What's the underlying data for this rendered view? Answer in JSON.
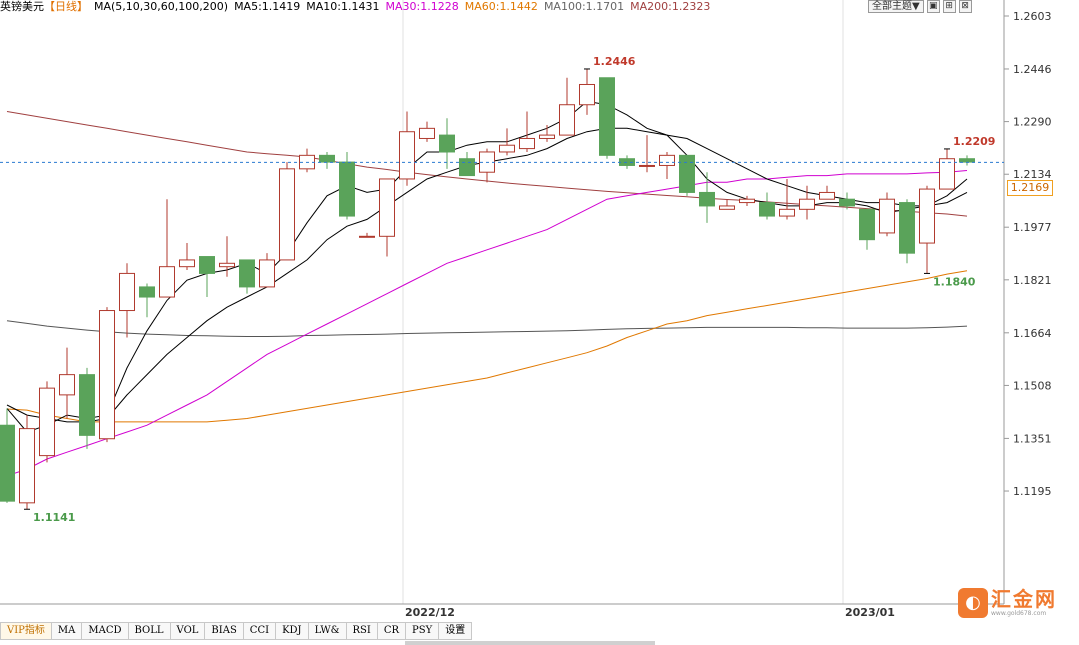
{
  "header": {
    "title": "英镑美元",
    "period": "【日线】",
    "ma_params": "MA(5,10,30,60,100,200)",
    "ma5": "MA5:1.1419",
    "ma10": "MA10:1.1431",
    "ma30": "MA30:1.1228",
    "ma60": "MA60:1.1442",
    "ma100": "MA100:1.1701",
    "ma200": "MA200:1.2323"
  },
  "controls": {
    "theme_label": "全部主题▼",
    "buttons": [
      "▣",
      "⊞",
      "⊠"
    ]
  },
  "price_tag": "1.2169",
  "logo": {
    "icon": "◐",
    "name": "汇金网",
    "url": "www.gold678.com"
  },
  "bottom_tabs": [
    "VIP指标",
    "MA",
    "MACD",
    "BOLL",
    "VOL",
    "BIAS",
    "CCI",
    "KDJ",
    "LW&",
    "RSI",
    "CR",
    "PSY",
    "设置"
  ],
  "colors": {
    "up": "#b03a2e",
    "down": "#5aa35a",
    "ma5": "#000000",
    "ma10": "#000000",
    "ma30": "#d000d0",
    "ma60": "#e07800",
    "ma100": "#555555",
    "ma200": "#a04040",
    "current": "#2a7ad0"
  },
  "chart_data": {
    "type": "candlestick",
    "y_ticks": [
      "1.2603",
      "1.2446",
      "1.2290",
      "1.2134",
      "1.1977",
      "1.1821",
      "1.1664",
      "1.1508",
      "1.1351",
      "1.1195"
    ],
    "ylim": [
      1.1038,
      1.2603
    ],
    "x_labels": [
      {
        "label": "2022/12",
        "index": 20
      },
      {
        "label": "2023/01",
        "index": 42
      }
    ],
    "current_price": 1.2169,
    "annotations": [
      {
        "text": "1.2446",
        "index": 29,
        "value": 1.2446,
        "type": "high"
      },
      {
        "text": "1.1141",
        "index": 1,
        "value": 1.1141,
        "type": "low"
      },
      {
        "text": "1.2209",
        "index": 47,
        "value": 1.2209,
        "type": "high"
      },
      {
        "text": "1.1840",
        "index": 46,
        "value": 1.184,
        "type": "low"
      }
    ],
    "candles": [
      {
        "o": 1.139,
        "h": 1.144,
        "l": 1.116,
        "c": 1.1165
      },
      {
        "o": 1.116,
        "h": 1.142,
        "l": 1.1141,
        "c": 1.138
      },
      {
        "o": 1.13,
        "h": 1.152,
        "l": 1.128,
        "c": 1.15
      },
      {
        "o": 1.148,
        "h": 1.162,
        "l": 1.141,
        "c": 1.154
      },
      {
        "o": 1.154,
        "h": 1.156,
        "l": 1.132,
        "c": 1.136
      },
      {
        "o": 1.135,
        "h": 1.174,
        "l": 1.134,
        "c": 1.173
      },
      {
        "o": 1.173,
        "h": 1.187,
        "l": 1.165,
        "c": 1.184
      },
      {
        "o": 1.18,
        "h": 1.181,
        "l": 1.171,
        "c": 1.177
      },
      {
        "o": 1.177,
        "h": 1.206,
        "l": 1.177,
        "c": 1.186
      },
      {
        "o": 1.186,
        "h": 1.193,
        "l": 1.185,
        "c": 1.188
      },
      {
        "o": 1.189,
        "h": 1.189,
        "l": 1.177,
        "c": 1.184
      },
      {
        "o": 1.186,
        "h": 1.195,
        "l": 1.183,
        "c": 1.187
      },
      {
        "o": 1.188,
        "h": 1.188,
        "l": 1.178,
        "c": 1.18
      },
      {
        "o": 1.18,
        "h": 1.19,
        "l": 1.18,
        "c": 1.188
      },
      {
        "o": 1.188,
        "h": 1.217,
        "l": 1.188,
        "c": 1.215
      },
      {
        "o": 1.215,
        "h": 1.221,
        "l": 1.214,
        "c": 1.219
      },
      {
        "o": 1.219,
        "h": 1.22,
        "l": 1.215,
        "c": 1.217
      },
      {
        "o": 1.217,
        "h": 1.22,
        "l": 1.2,
        "c": 1.201
      },
      {
        "o": 1.195,
        "h": 1.196,
        "l": 1.195,
        "c": 1.195
      },
      {
        "o": 1.195,
        "h": 1.212,
        "l": 1.189,
        "c": 1.212
      },
      {
        "o": 1.212,
        "h": 1.232,
        "l": 1.21,
        "c": 1.226
      },
      {
        "o": 1.224,
        "h": 1.229,
        "l": 1.223,
        "c": 1.227
      },
      {
        "o": 1.225,
        "h": 1.23,
        "l": 1.215,
        "c": 1.22
      },
      {
        "o": 1.218,
        "h": 1.22,
        "l": 1.213,
        "c": 1.213
      },
      {
        "o": 1.214,
        "h": 1.221,
        "l": 1.211,
        "c": 1.22
      },
      {
        "o": 1.22,
        "h": 1.227,
        "l": 1.219,
        "c": 1.222
      },
      {
        "o": 1.221,
        "h": 1.232,
        "l": 1.22,
        "c": 1.224
      },
      {
        "o": 1.224,
        "h": 1.228,
        "l": 1.223,
        "c": 1.225
      },
      {
        "o": 1.225,
        "h": 1.242,
        "l": 1.225,
        "c": 1.234
      },
      {
        "o": 1.234,
        "h": 1.2446,
        "l": 1.231,
        "c": 1.24
      },
      {
        "o": 1.242,
        "h": 1.242,
        "l": 1.218,
        "c": 1.219
      },
      {
        "o": 1.218,
        "h": 1.219,
        "l": 1.215,
        "c": 1.216
      },
      {
        "o": 1.216,
        "h": 1.225,
        "l": 1.214,
        "c": 1.216
      },
      {
        "o": 1.216,
        "h": 1.22,
        "l": 1.212,
        "c": 1.219
      },
      {
        "o": 1.219,
        "h": 1.219,
        "l": 1.207,
        "c": 1.208
      },
      {
        "o": 1.208,
        "h": 1.214,
        "l": 1.199,
        "c": 1.204
      },
      {
        "o": 1.203,
        "h": 1.206,
        "l": 1.203,
        "c": 1.204
      },
      {
        "o": 1.205,
        "h": 1.207,
        "l": 1.204,
        "c": 1.206
      },
      {
        "o": 1.205,
        "h": 1.208,
        "l": 1.2,
        "c": 1.201
      },
      {
        "o": 1.201,
        "h": 1.212,
        "l": 1.2,
        "c": 1.203
      },
      {
        "o": 1.203,
        "h": 1.21,
        "l": 1.2,
        "c": 1.206
      },
      {
        "o": 1.206,
        "h": 1.21,
        "l": 1.206,
        "c": 1.208
      },
      {
        "o": 1.206,
        "h": 1.208,
        "l": 1.203,
        "c": 1.204
      },
      {
        "o": 1.203,
        "h": 1.203,
        "l": 1.191,
        "c": 1.194
      },
      {
        "o": 1.196,
        "h": 1.208,
        "l": 1.195,
        "c": 1.206
      },
      {
        "o": 1.205,
        "h": 1.206,
        "l": 1.187,
        "c": 1.19
      },
      {
        "o": 1.193,
        "h": 1.21,
        "l": 1.184,
        "c": 1.209
      },
      {
        "o": 1.209,
        "h": 1.2209,
        "l": 1.209,
        "c": 1.218
      },
      {
        "o": 1.218,
        "h": 1.219,
        "l": 1.216,
        "c": 1.217
      }
    ],
    "ma5_line": [
      1.144,
      1.137,
      1.139,
      1.142,
      1.141,
      1.142,
      1.156,
      1.167,
      1.176,
      1.182,
      1.184,
      1.185,
      1.187,
      1.184,
      1.19,
      1.199,
      1.207,
      1.21,
      1.208,
      1.209,
      1.215,
      1.22,
      1.22,
      1.222,
      1.223,
      1.223,
      1.225,
      1.227,
      1.23,
      1.235,
      1.234,
      1.231,
      1.227,
      1.225,
      1.219,
      1.212,
      1.208,
      1.206,
      1.205,
      1.204,
      1.204,
      1.205,
      1.205,
      1.204,
      1.202,
      1.203,
      1.204,
      1.207,
      1.212
    ],
    "ma10_line": [
      1.145,
      1.142,
      1.141,
      1.14,
      1.14,
      1.141,
      1.148,
      1.154,
      1.16,
      1.165,
      1.17,
      1.174,
      1.177,
      1.18,
      1.184,
      1.188,
      1.194,
      1.198,
      1.2,
      1.204,
      1.208,
      1.212,
      1.214,
      1.216,
      1.217,
      1.218,
      1.219,
      1.221,
      1.224,
      1.226,
      1.227,
      1.227,
      1.226,
      1.225,
      1.224,
      1.221,
      1.218,
      1.215,
      1.212,
      1.21,
      1.208,
      1.207,
      1.206,
      1.205,
      1.205,
      1.204,
      1.204,
      1.205,
      1.208
    ],
    "ma30_line": [
      1.124,
      1.126,
      1.129,
      1.131,
      1.133,
      1.135,
      1.137,
      1.139,
      1.142,
      1.145,
      1.148,
      1.152,
      1.156,
      1.16,
      1.163,
      1.166,
      1.169,
      1.172,
      1.175,
      1.178,
      1.181,
      1.184,
      1.187,
      1.189,
      1.191,
      1.193,
      1.195,
      1.197,
      1.2,
      1.203,
      1.206,
      1.207,
      1.208,
      1.209,
      1.21,
      1.211,
      1.211,
      1.212,
      1.212,
      1.2125,
      1.213,
      1.213,
      1.2135,
      1.2135,
      1.2135,
      1.2135,
      1.2138,
      1.214,
      1.2145
    ],
    "ma60_line": [
      1.1438,
      1.1435,
      1.142,
      1.141,
      1.14,
      1.14,
      1.14,
      1.14,
      1.14,
      1.14,
      1.14,
      1.1405,
      1.141,
      1.142,
      1.143,
      1.144,
      1.145,
      1.146,
      1.147,
      1.148,
      1.149,
      1.15,
      1.151,
      1.152,
      1.153,
      1.1545,
      1.156,
      1.1575,
      1.159,
      1.1605,
      1.1625,
      1.165,
      1.167,
      1.169,
      1.17,
      1.1715,
      1.1725,
      1.1735,
      1.1745,
      1.1755,
      1.1765,
      1.1775,
      1.1785,
      1.1795,
      1.1805,
      1.1815,
      1.1825,
      1.1838,
      1.1848
    ],
    "ma100_line": [
      1.17,
      1.1692,
      1.1684,
      1.1678,
      1.1672,
      1.1667,
      1.1663,
      1.166,
      1.1658,
      1.1656,
      1.1655,
      1.1654,
      1.1653,
      1.1653,
      1.1654,
      1.1656,
      1.1657,
      1.1658,
      1.1659,
      1.166,
      1.1662,
      1.1663,
      1.1664,
      1.1665,
      1.1666,
      1.1667,
      1.1668,
      1.1669,
      1.167,
      1.1672,
      1.1674,
      1.1676,
      1.1677,
      1.1678,
      1.1679,
      1.168,
      1.168,
      1.168,
      1.168,
      1.168,
      1.1679,
      1.1679,
      1.1678,
      1.1678,
      1.1678,
      1.1678,
      1.1679,
      1.1681,
      1.1684
    ],
    "ma200_line": [
      1.232,
      1.231,
      1.23,
      1.229,
      1.228,
      1.227,
      1.226,
      1.225,
      1.224,
      1.223,
      1.222,
      1.221,
      1.22,
      1.2195,
      1.219,
      1.2185,
      1.2175,
      1.2165,
      1.2155,
      1.2148,
      1.214,
      1.2133,
      1.2126,
      1.212,
      1.2114,
      1.2108,
      1.2103,
      1.2098,
      1.2093,
      1.2088,
      1.2083,
      1.2079,
      1.2075,
      1.2071,
      1.2067,
      1.2063,
      1.2059,
      1.2056,
      1.2052,
      1.2048,
      1.2044,
      1.204,
      1.2036,
      1.2032,
      1.2028,
      1.2024,
      1.202,
      1.2016,
      1.201
    ]
  }
}
